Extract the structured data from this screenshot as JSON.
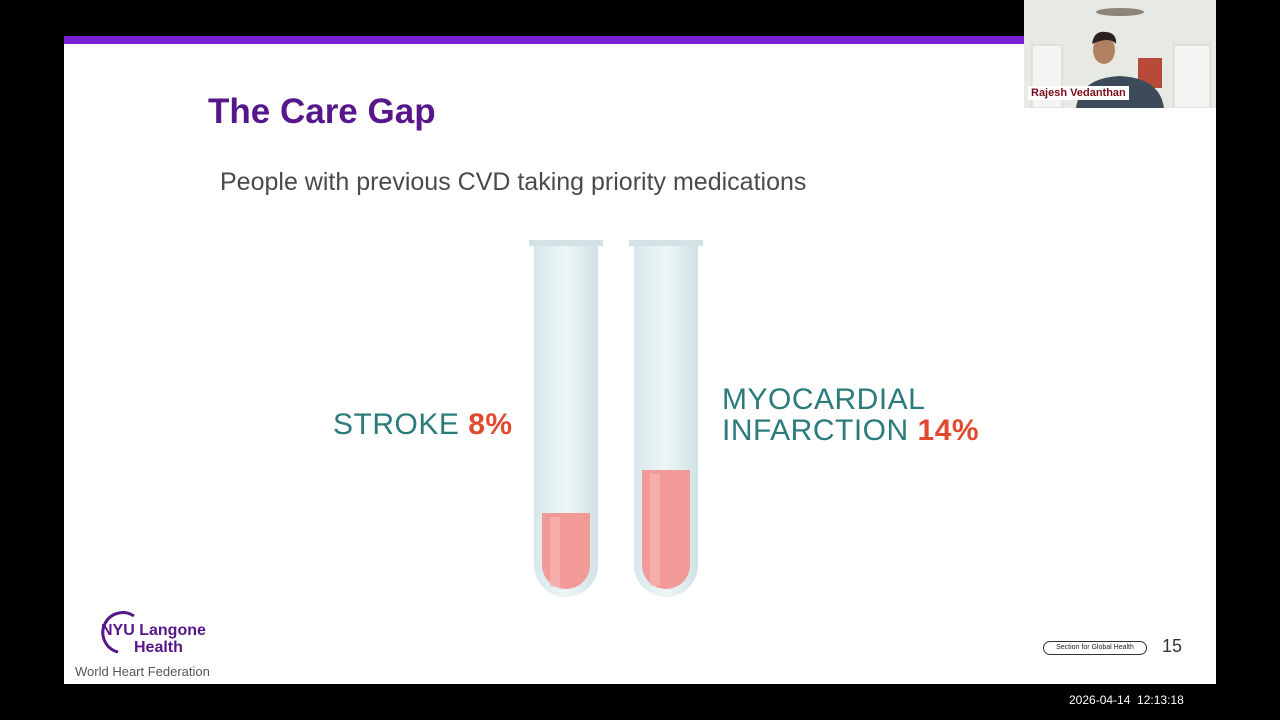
{
  "slide": {
    "title": "The Care Gap",
    "subtitle": "People with previous CVD taking priority medications",
    "items": [
      {
        "label": "STROKE",
        "value": "8%"
      },
      {
        "label_lines": [
          "MYOCARDIAL",
          "INFARCTION"
        ],
        "value": "14%"
      }
    ],
    "logo": {
      "line1": "NYU Langone",
      "line2": "Health"
    },
    "footer": "World Heart Federation",
    "badge": "Section for Global Health",
    "page_number": 15
  },
  "video": {
    "participant": "Rajesh Vedanthan"
  },
  "timestamp": "2026-04-14  12:13:18"
}
